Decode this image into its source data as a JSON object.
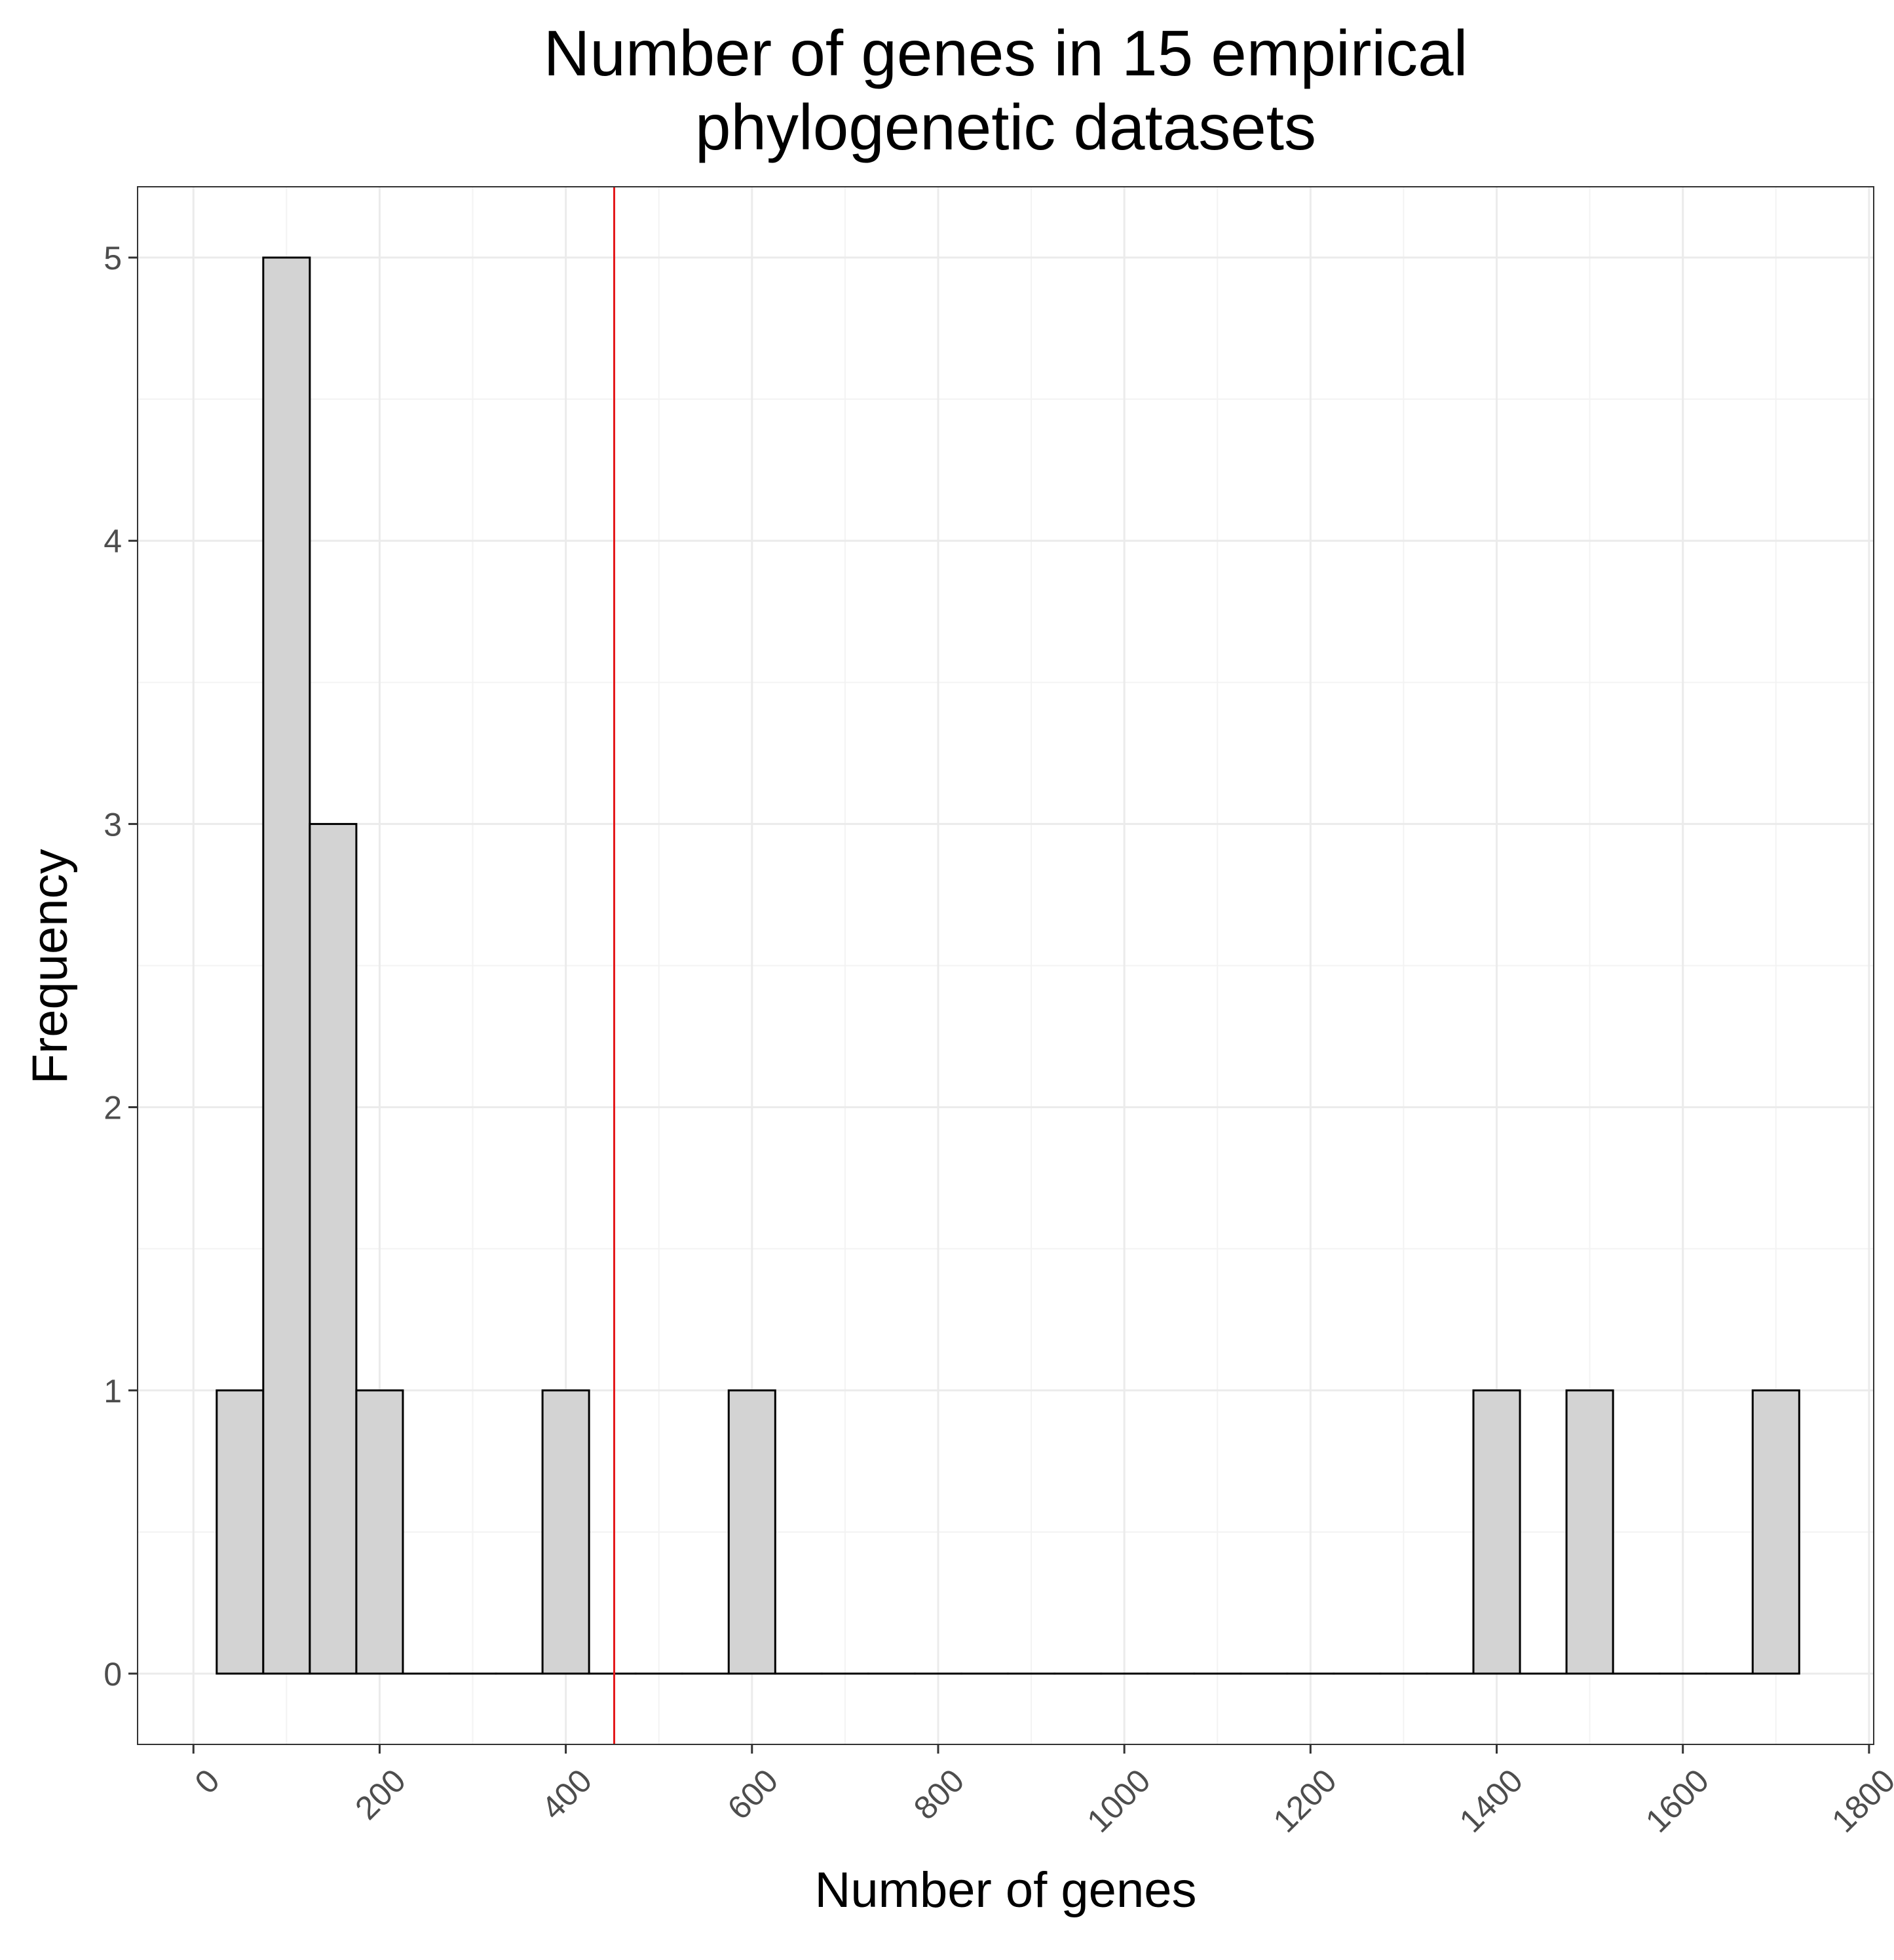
{
  "chart_data": {
    "type": "bar",
    "title_lines": [
      "Number of genes in 15 empirical",
      "phylogenetic datasets"
    ],
    "xlabel": "Number of genes",
    "ylabel": "Frequency",
    "xlim": [
      -60,
      1805
    ],
    "ylim": [
      -0.25,
      5.25
    ],
    "x_ticks": [
      0,
      200,
      400,
      600,
      800,
      1000,
      1200,
      1400,
      1600,
      1800
    ],
    "x_tick_labels": [
      "0",
      "200",
      "400",
      "600",
      "800",
      "1000",
      "1200",
      "1400",
      "1600",
      "1800"
    ],
    "y_ticks": [
      0,
      1,
      2,
      3,
      4,
      5
    ],
    "y_tick_labels": [
      "0",
      "1",
      "2",
      "3",
      "4",
      "5"
    ],
    "bin_width": 50,
    "bins_start": [
      25,
      75,
      125,
      175,
      225,
      275,
      325,
      375,
      425,
      475,
      525,
      575,
      625,
      675,
      725,
      775,
      825,
      875,
      925,
      975,
      1025,
      1075,
      1125,
      1175,
      1225,
      1275,
      1325,
      1375,
      1425,
      1475,
      1525,
      1575,
      1625,
      1675
    ],
    "counts": [
      1,
      5,
      3,
      1,
      0,
      0,
      0,
      1,
      0,
      0,
      0,
      1,
      0,
      0,
      0,
      0,
      0,
      0,
      0,
      0,
      0,
      0,
      0,
      0,
      0,
      0,
      0,
      1,
      0,
      1,
      0,
      0,
      0,
      1
    ],
    "reference_line_x": 452,
    "colors": {
      "bar_fill": "#d3d3d3",
      "bar_stroke": "#000000",
      "reference_line": "#e41a1c",
      "grid_major": "#ebebeb",
      "grid_minor": "#f3f3f3",
      "panel_border": "#333333",
      "tick_text": "#4d4d4d"
    },
    "grid": true,
    "x_tick_rotation_deg": -45
  }
}
